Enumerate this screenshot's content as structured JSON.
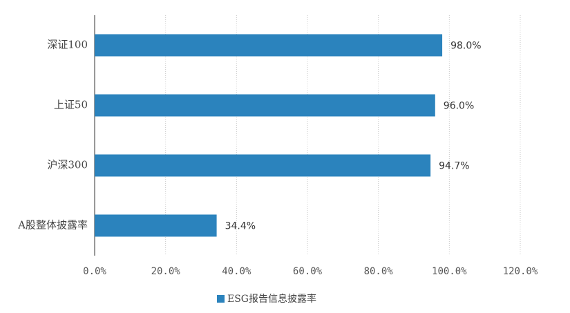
{
  "chart_data": {
    "type": "bar",
    "orientation": "horizontal",
    "categories": [
      "深证100",
      "上证50",
      "沪深300",
      "A股整体披露率"
    ],
    "series": [
      {
        "name": "ESG报告信息披露率",
        "color": "#2b83bd",
        "values": [
          98.0,
          96.0,
          94.7,
          34.4
        ],
        "value_labels": [
          "98.0%",
          "96.0%",
          "94.7%",
          "34.4%"
        ]
      }
    ],
    "xlim": [
      0,
      120
    ],
    "xticks": [
      {
        "value": 0,
        "label": "0.0%"
      },
      {
        "value": 20,
        "label": "20.0%"
      },
      {
        "value": 40,
        "label": "40.0%"
      },
      {
        "value": 60,
        "label": "60.0%"
      },
      {
        "value": 80,
        "label": "80.0%"
      },
      {
        "value": 100,
        "label": "100.0%"
      },
      {
        "value": 120,
        "label": "120.0%"
      }
    ],
    "grid": true,
    "legend": "bottom"
  }
}
